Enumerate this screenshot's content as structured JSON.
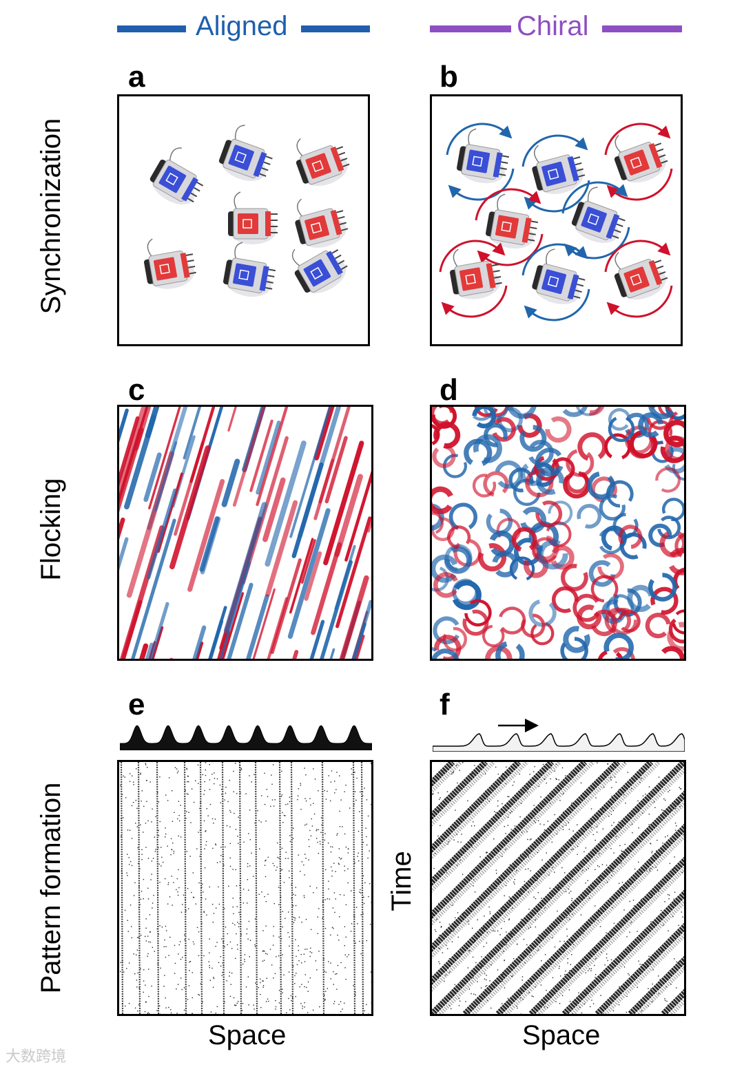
{
  "columns": {
    "aligned": {
      "title": "Aligned",
      "color": "#1f5fae"
    },
    "chiral": {
      "title": "Chiral",
      "color": "#8e4fc2"
    }
  },
  "rows": {
    "synchronization": "Synchronization",
    "flocking": "Flocking",
    "pattern": "Pattern formation"
  },
  "panels": {
    "a": "a",
    "b": "b",
    "c": "c",
    "d": "d",
    "e": "e",
    "f": "f"
  },
  "axes": {
    "space_e": "Space",
    "space_f": "Space",
    "time_f": "Time"
  },
  "colors": {
    "red": "#d0112b",
    "blue": "#2166ac",
    "robot_blue": "#3a4fd6",
    "robot_red": "#e23a3a"
  },
  "icons": {
    "travel_direction": "right-arrow-icon"
  },
  "watermark": "大数跨境"
}
